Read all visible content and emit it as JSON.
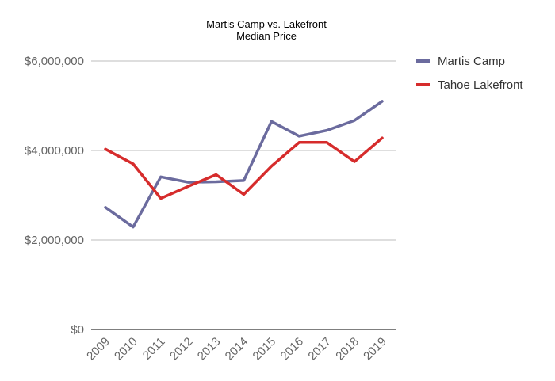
{
  "chart_data": {
    "type": "line",
    "title": "Martis Camp vs. Lakefront",
    "subtitle": "Median Price",
    "x": [
      "2009",
      "2010",
      "2011",
      "2012",
      "2013",
      "2014",
      "2015",
      "2016",
      "2017",
      "2018",
      "2019"
    ],
    "series": [
      {
        "name": "Martis Camp",
        "color": "#6b6b9e",
        "values": [
          2730000,
          2290000,
          3410000,
          3290000,
          3300000,
          3330000,
          4650000,
          4320000,
          4450000,
          4670000,
          5100000
        ]
      },
      {
        "name": "Tahoe Lakefront",
        "color": "#d62c2c",
        "values": [
          4030000,
          3700000,
          2930000,
          3200000,
          3460000,
          3020000,
          3650000,
          4180000,
          4180000,
          3750000,
          4280000
        ]
      }
    ],
    "ylim": [
      0,
      6000000
    ],
    "yticks": [
      0,
      2000000,
      4000000,
      6000000
    ],
    "ytick_labels": [
      "$0",
      "$2,000,000",
      "$4,000,000",
      "$6,000,000"
    ],
    "grid": true,
    "legend": "right",
    "xlabel": "",
    "ylabel": ""
  }
}
